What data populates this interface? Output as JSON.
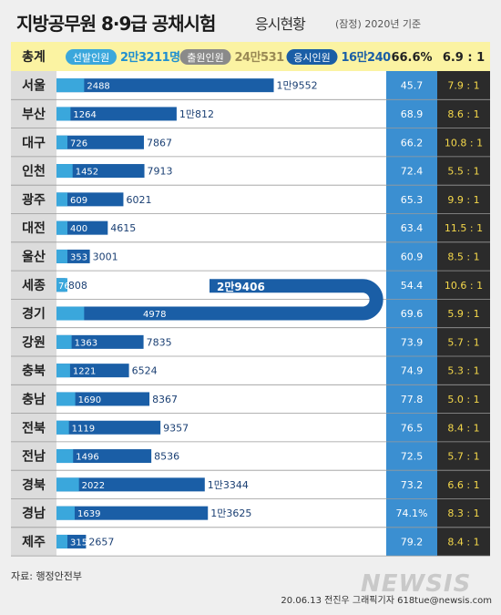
{
  "title": {
    "main": "지방공무원 8·9급 공채시험",
    "sub": "응시현황",
    "note": "(잠정) 2020년 기준"
  },
  "source": "자료: 행정안전부",
  "credit": "20.06.13 전진우 그래픽기자 618tue@newsis.com",
  "watermark": "NEWSIS",
  "colors": {
    "selected": "#3aa7dc",
    "applicants": "#1a5ea6",
    "rate": "#3b8fd1",
    "ratio": "#2b2b2b",
    "ratio_text": "#f5d84a",
    "header": "#fbf3a2"
  },
  "chart_data": {
    "type": "bar",
    "header": {
      "label": "총계",
      "legend": [
        {
          "name": "선발인원",
          "value": "2만3211명"
        },
        {
          "name": "출원인원",
          "value": "24만531"
        },
        {
          "name": "응시인원",
          "value": "16만240"
        }
      ],
      "rate": "66.6%",
      "ratio": "6.9 : 1"
    },
    "categories": [
      "서울",
      "부산",
      "대구",
      "인천",
      "광주",
      "대전",
      "울산",
      "세종",
      "경기",
      "강원",
      "충북",
      "충남",
      "전북",
      "전남",
      "경북",
      "경남",
      "제주"
    ],
    "series": [
      {
        "name": "선발인원",
        "values": [
          2488,
          1264,
          726,
          1452,
          609,
          400,
          353,
          76,
          4978,
          1363,
          1221,
          1690,
          1119,
          1496,
          2022,
          1639,
          315
        ],
        "labels": [
          "2488",
          "1264",
          "726",
          "1452",
          "609",
          "400",
          "353",
          "76",
          "4978",
          "1363",
          "1221",
          "1690",
          "1119",
          "1496",
          "2022",
          "1639",
          "315"
        ]
      },
      {
        "name": "응시인원",
        "values": [
          19552,
          10812,
          7867,
          7913,
          6021,
          4615,
          3001,
          808,
          29406,
          7835,
          6524,
          8367,
          9357,
          8536,
          13344,
          13625,
          2657
        ],
        "labels": [
          "1만9552",
          "1만812",
          "7867",
          "7913",
          "6021",
          "4615",
          "3001",
          "808",
          "2만9406",
          "7835",
          "6524",
          "8367",
          "9357",
          "8536",
          "1만3344",
          "1만3625",
          "2657"
        ]
      }
    ],
    "rates": [
      "45.7",
      "68.9",
      "66.2",
      "72.4",
      "65.3",
      "63.4",
      "60.9",
      "54.4",
      "69.6",
      "73.9",
      "74.9",
      "77.8",
      "76.5",
      "72.5",
      "73.2",
      "74.1%",
      "79.2"
    ],
    "ratios": [
      "7.9 : 1",
      "8.6 : 1",
      "10.8 : 1",
      "5.5 : 1",
      "9.9 : 1",
      "11.5 : 1",
      "8.5 : 1",
      "10.6 : 1",
      "5.9 : 1",
      "5.7 : 1",
      "5.3 : 1",
      "5.0 : 1",
      "8.4 : 1",
      "5.7 : 1",
      "6.6 : 1",
      "8.3 : 1",
      "8.4 : 1"
    ]
  }
}
